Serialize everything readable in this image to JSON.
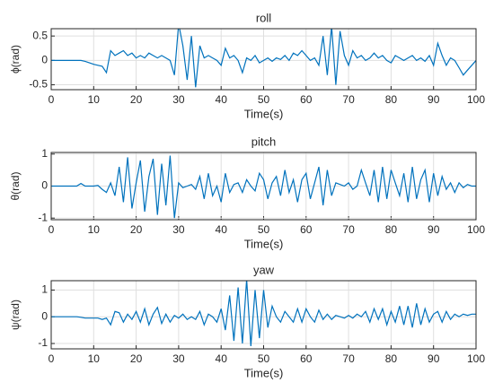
{
  "chart_data": [
    {
      "type": "line",
      "title": "roll",
      "xlabel": "Time(s)",
      "ylabel": "ϕ(rad)",
      "color": "#0072bd",
      "grid": true,
      "x": [
        0,
        1,
        2,
        3,
        4,
        5,
        6,
        7,
        8,
        9,
        10,
        11,
        12,
        13,
        14,
        15,
        16,
        17,
        18,
        19,
        20,
        21,
        22,
        23,
        24,
        25,
        26,
        27,
        28,
        29,
        30,
        31,
        32,
        33,
        34,
        35,
        36,
        37,
        38,
        39,
        40,
        41,
        42,
        43,
        44,
        45,
        46,
        47,
        48,
        49,
        50,
        51,
        52,
        53,
        54,
        55,
        56,
        57,
        58,
        59,
        60,
        61,
        62,
        63,
        64,
        65,
        66,
        67,
        68,
        69,
        70,
        71,
        72,
        73,
        74,
        75,
        76,
        77,
        78,
        79,
        80,
        81,
        82,
        83,
        84,
        85,
        86,
        87,
        88,
        89,
        90,
        91,
        92,
        93,
        94,
        95,
        96,
        97,
        98,
        99,
        100
      ],
      "values": [
        0,
        0,
        0,
        0,
        0,
        0,
        0,
        0,
        -0.02,
        -0.05,
        -0.08,
        -0.1,
        -0.12,
        -0.25,
        0.2,
        0.1,
        0.15,
        0.2,
        0.1,
        0.15,
        0.05,
        0.1,
        0.05,
        0.15,
        0.1,
        0.05,
        0.1,
        0.05,
        0,
        -0.3,
        0.75,
        0.3,
        -0.4,
        0.5,
        -0.55,
        0.3,
        0.05,
        0.1,
        0.05,
        0,
        -0.1,
        0.25,
        0.05,
        0.1,
        0,
        -0.25,
        0.05,
        0,
        0.1,
        -0.05,
        0,
        0.05,
        -0.02,
        0.05,
        0.02,
        0.1,
        0,
        0.15,
        0.1,
        0.2,
        0.1,
        0,
        0.05,
        -0.1,
        0.5,
        -0.3,
        0.7,
        -0.5,
        0.6,
        0.1,
        -0.1,
        0.2,
        0.05,
        0.1,
        0,
        0.05,
        0.15,
        0.05,
        0.1,
        0,
        -0.05,
        0.1,
        0.05,
        0,
        0.05,
        0.1,
        0,
        0.05,
        -0.02,
        0.1,
        -0.1,
        0.35,
        0.1,
        -0.1,
        0.05,
        0,
        -0.15,
        -0.3,
        -0.2,
        -0.1,
        0
      ],
      "xlim": [
        0,
        100
      ],
      "xticks": [
        0,
        10,
        20,
        30,
        40,
        50,
        60,
        70,
        80,
        90,
        100
      ],
      "ylim": [
        -0.6,
        0.65
      ],
      "yticks": [
        -0.5,
        0,
        0.5
      ]
    },
    {
      "type": "line",
      "title": "pitch",
      "xlabel": "Time(s)",
      "ylabel": "θ(rad)",
      "color": "#0072bd",
      "grid": true,
      "x": [
        0,
        1,
        2,
        3,
        4,
        5,
        6,
        7,
        8,
        9,
        10,
        11,
        12,
        13,
        14,
        15,
        16,
        17,
        18,
        19,
        20,
        21,
        22,
        23,
        24,
        25,
        26,
        27,
        28,
        29,
        30,
        31,
        32,
        33,
        34,
        35,
        36,
        37,
        38,
        39,
        40,
        41,
        42,
        43,
        44,
        45,
        46,
        47,
        48,
        49,
        50,
        51,
        52,
        53,
        54,
        55,
        56,
        57,
        58,
        59,
        60,
        61,
        62,
        63,
        64,
        65,
        66,
        67,
        68,
        69,
        70,
        71,
        72,
        73,
        74,
        75,
        76,
        77,
        78,
        79,
        80,
        81,
        82,
        83,
        84,
        85,
        86,
        87,
        88,
        89,
        90,
        91,
        92,
        93,
        94,
        95,
        96,
        97,
        98,
        99,
        100
      ],
      "values": [
        0,
        0,
        0,
        0,
        0,
        0,
        0,
        0.08,
        0,
        0,
        0,
        0.02,
        -0.1,
        -0.2,
        0.1,
        -0.3,
        0.6,
        -0.5,
        0.9,
        -0.7,
        0.1,
        0.8,
        -0.8,
        0.3,
        0.85,
        -0.9,
        0.7,
        -0.6,
        0.95,
        -1.0,
        0.1,
        -0.05,
        0,
        0.05,
        -0.1,
        0.3,
        -0.4,
        0.4,
        -0.3,
        0,
        -0.5,
        0.4,
        -0.2,
        0.05,
        0.1,
        -0.2,
        0.2,
        0,
        -0.15,
        0.4,
        0.2,
        -0.4,
        0.1,
        0.3,
        -0.3,
        0.5,
        -0.2,
        0.2,
        -0.5,
        0.2,
        0.4,
        -0.4,
        0.1,
        0.6,
        -0.6,
        0.5,
        -0.3,
        0.1,
        0.05,
        0,
        0.1,
        -0.1,
        0,
        0.5,
        0.1,
        -0.3,
        0.5,
        -0.5,
        0.6,
        -0.4,
        0.5,
        0.1,
        -0.3,
        0.4,
        -0.5,
        0.6,
        -0.4,
        0.2,
        0.5,
        -0.5,
        0.4,
        -0.3,
        0.3,
        -0.1,
        0.1,
        -0.2,
        0.1,
        -0.05,
        0.05,
        0,
        0
      ],
      "xlim": [
        0,
        100
      ],
      "xticks": [
        0,
        10,
        20,
        30,
        40,
        50,
        60,
        70,
        80,
        90,
        100
      ],
      "ylim": [
        -1.05,
        1.05
      ],
      "yticks": [
        -1,
        0,
        1
      ]
    },
    {
      "type": "line",
      "title": "yaw",
      "xlabel": "Time(s)",
      "ylabel": "ψ(rad)",
      "color": "#0072bd",
      "grid": true,
      "x": [
        0,
        1,
        2,
        3,
        4,
        5,
        6,
        7,
        8,
        9,
        10,
        11,
        12,
        13,
        14,
        15,
        16,
        17,
        18,
        19,
        20,
        21,
        22,
        23,
        24,
        25,
        26,
        27,
        28,
        29,
        30,
        31,
        32,
        33,
        34,
        35,
        36,
        37,
        38,
        39,
        40,
        41,
        42,
        43,
        44,
        45,
        46,
        47,
        48,
        49,
        50,
        51,
        52,
        53,
        54,
        55,
        56,
        57,
        58,
        59,
        60,
        61,
        62,
        63,
        64,
        65,
        66,
        67,
        68,
        69,
        70,
        71,
        72,
        73,
        74,
        75,
        76,
        77,
        78,
        79,
        80,
        81,
        82,
        83,
        84,
        85,
        86,
        87,
        88,
        89,
        90,
        91,
        92,
        93,
        94,
        95,
        96,
        97,
        98,
        99,
        100
      ],
      "values": [
        0,
        0,
        0,
        0,
        0,
        0,
        0,
        -0.02,
        -0.05,
        -0.05,
        -0.05,
        -0.05,
        -0.1,
        -0.05,
        -0.3,
        0.2,
        0.15,
        -0.2,
        0.1,
        -0.1,
        0.2,
        -0.2,
        0.3,
        -0.3,
        0.1,
        0.35,
        -0.25,
        0.1,
        -0.2,
        0.05,
        -0.05,
        0.1,
        -0.1,
        0,
        -0.1,
        0.2,
        -0.3,
        0.1,
        0,
        -0.2,
        0.3,
        -0.5,
        0.8,
        -0.9,
        1.1,
        -1.0,
        1.4,
        -1.1,
        1.0,
        -0.8,
        1.0,
        -0.4,
        0.4,
        0,
        -0.2,
        0.2,
        0,
        -0.2,
        0.3,
        -0.2,
        0.3,
        0,
        -0.2,
        0.25,
        -0.1,
        0.1,
        -0.1,
        0.05,
        0,
        -0.05,
        0.05,
        -0.05,
        0.1,
        0,
        0.2,
        -0.2,
        0.3,
        -0.1,
        0.3,
        -0.3,
        0.2,
        -0.2,
        0.4,
        -0.3,
        0.4,
        -0.4,
        0.5,
        -0.3,
        0.3,
        -0.2,
        0.1,
        0.2,
        -0.2,
        0.2,
        -0.1,
        0.1,
        0,
        0.1,
        0.05,
        0.1,
        0.1
      ],
      "xlim": [
        0,
        100
      ],
      "xticks": [
        0,
        10,
        20,
        30,
        40,
        50,
        60,
        70,
        80,
        90,
        100
      ],
      "ylim": [
        -1.2,
        1.35
      ],
      "yticks": [
        -1,
        0,
        1
      ]
    }
  ]
}
